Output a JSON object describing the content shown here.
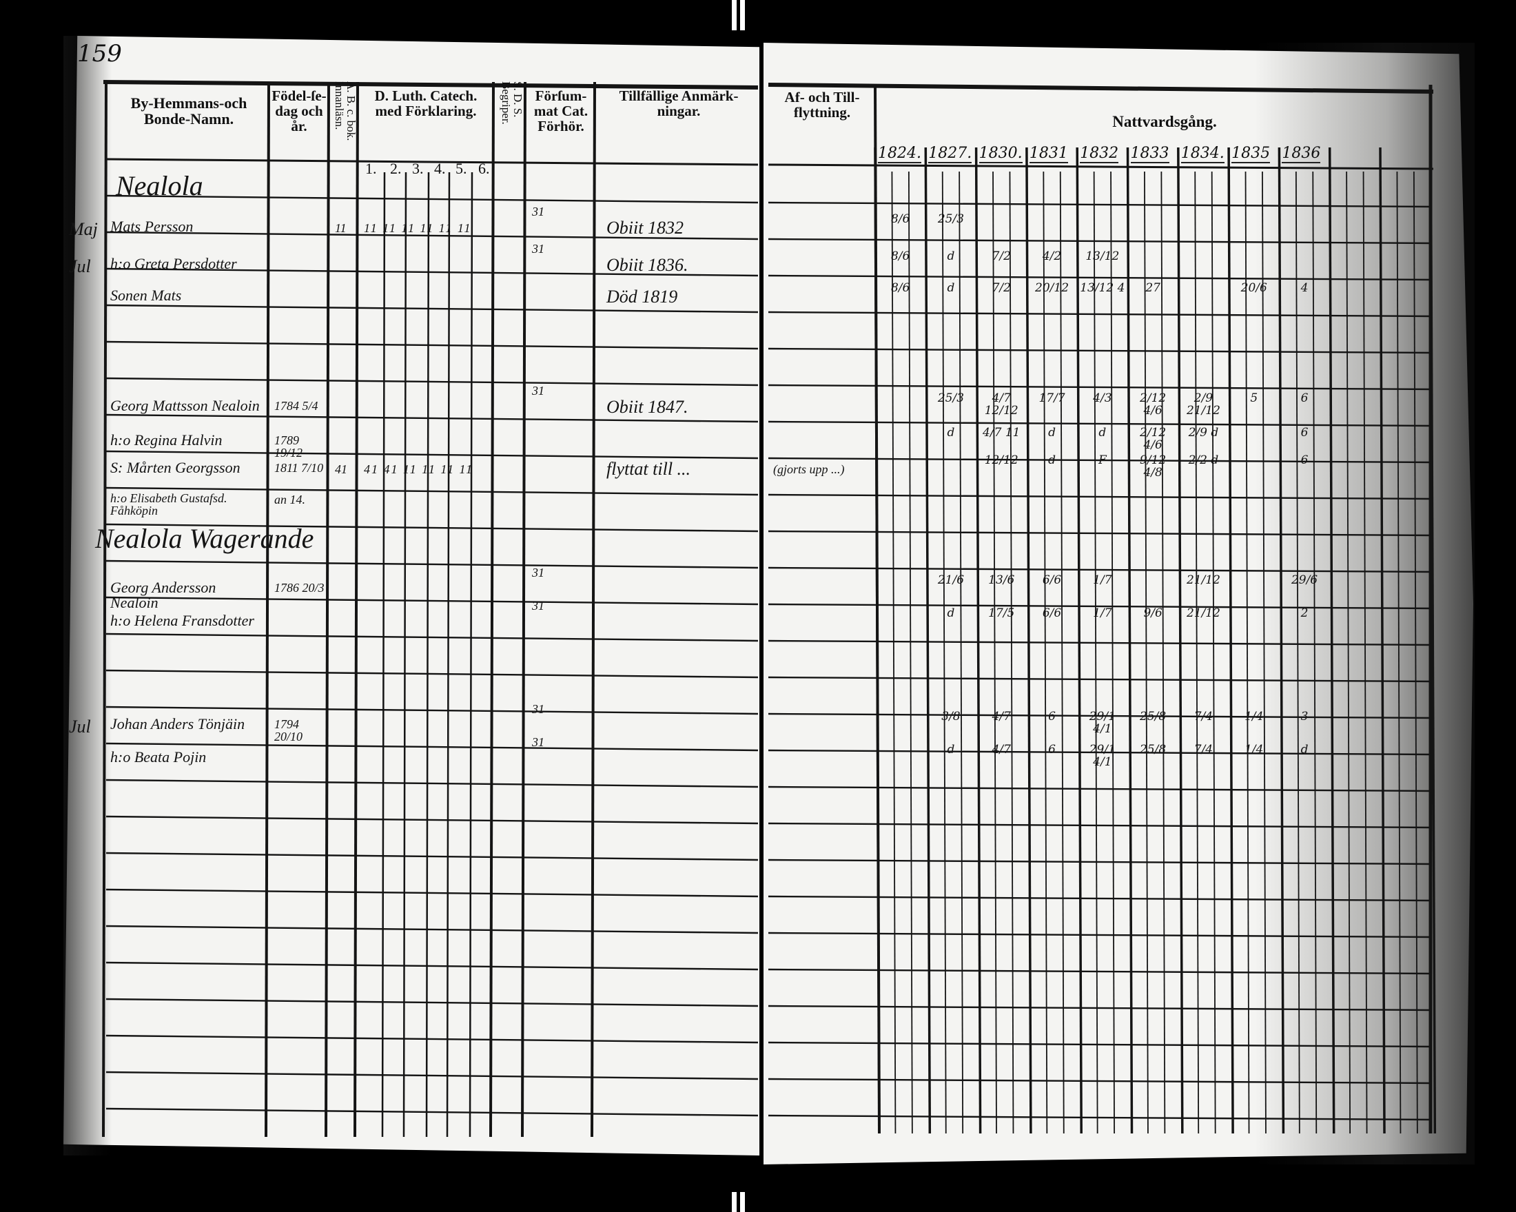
{
  "page_number": "159",
  "left_page": {
    "headers": {
      "name": "By-Hemmans-och Bonde-Namn.",
      "birth": "Födel-ſe-dag och år.",
      "abc": "A. B. c. bok. Innanläsn.",
      "catechism": "D. Luth. Catech. med Förklaring.",
      "understands": "S. D. S. Begriper.",
      "hearing": "Förſum-mat Cat. Förhör.",
      "remarks": "Tillfällige Anmärk-ningar."
    },
    "catechism_subcolumns": [
      "1.",
      "2.",
      "3.",
      "4.",
      "5.",
      "6."
    ]
  },
  "right_page": {
    "headers": {
      "moving": "Af- och Till-flyttning.",
      "communion": "Nattvardsgång."
    },
    "years": [
      "1824.",
      "1827.",
      "1830.",
      "1831",
      "1832",
      "1833",
      "1834.",
      "1835",
      "1836"
    ]
  },
  "farm_titles": [
    "Nealola",
    "Nealola Wagerande"
  ],
  "rows": [
    {
      "margin": "Maj",
      "name": "Mats Persson",
      "birth": "",
      "abc": "11",
      "catechism": "11 11 11 11 11 11",
      "hearing": "31",
      "remark": "Obiit 1832",
      "moving": "",
      "communion": [
        "8/6",
        "25/3",
        "",
        "",
        "",
        "",
        "",
        "",
        ""
      ]
    },
    {
      "margin": "Jul",
      "name": "h:o Greta Persdotter",
      "birth": "",
      "abc": "",
      "catechism": "",
      "hearing": "31",
      "remark": "Obiit 1836.",
      "moving": "",
      "communion": [
        "8/6",
        "d",
        "7/2",
        "4/2",
        "13/12",
        "",
        "",
        "",
        ""
      ]
    },
    {
      "margin": "",
      "name": "Sonen Mats",
      "birth": "",
      "abc": "",
      "catechism": "",
      "hearing": "",
      "remark": "Död 1819",
      "moving": "",
      "communion": [
        "8/6",
        "d",
        "7/2",
        "20/12",
        "13/12 4",
        "27",
        "",
        "20/6",
        "4"
      ]
    },
    {
      "margin": "",
      "name": "Georg Mattsson Nealoin",
      "birth": "1784 5/4",
      "abc": "",
      "catechism": "",
      "hearing": "31",
      "remark": "Obiit 1847.",
      "moving": "",
      "communion": [
        "",
        "25/3",
        "4/7 12/12",
        "17/7",
        "4/3",
        "2/12 4/6",
        "2/9 21/12",
        "5",
        "6"
      ]
    },
    {
      "margin": "",
      "name": "h:o Regina Halvin",
      "birth": "1789 19/12",
      "abc": "",
      "catechism": "",
      "hearing": "",
      "remark": "",
      "moving": "",
      "communion": [
        "",
        "d",
        "4/7 11",
        "d",
        "d",
        "2/12 4/6",
        "2/9 d",
        "",
        "6"
      ]
    },
    {
      "margin": "",
      "name": "S: Mårten Georgsson",
      "birth": "1811 7/10",
      "abc": "41",
      "catechism": "41 41 11 11 11 11",
      "hearing": "",
      "remark": "flyttat till ...",
      "moving": "(gjorts upp ...)",
      "communion": [
        "",
        "",
        "12/12",
        "d",
        "F",
        "9/12 4/8",
        "2/2 d",
        "",
        "6"
      ]
    },
    {
      "margin": "",
      "name": "h:o Elisabeth Gustafsd. Fåhköpin",
      "birth": "an 14.",
      "abc": "",
      "catechism": "",
      "hearing": "",
      "remark": "",
      "moving": "",
      "communion": [
        "",
        "",
        "",
        "",
        "",
        "",
        "",
        "",
        ""
      ]
    },
    {
      "margin": "",
      "name": "Georg Andersson Nealoin",
      "birth": "1786 20/3",
      "abc": "",
      "catechism": "",
      "hearing": "31",
      "remark": "",
      "moving": "",
      "communion": [
        "",
        "21/6",
        "13/6",
        "6/6",
        "1/7",
        "",
        "21/12",
        "",
        "29/6"
      ]
    },
    {
      "margin": "",
      "name": "h:o Helena Fransdotter",
      "birth": "",
      "abc": "",
      "catechism": "",
      "hearing": "31",
      "remark": "",
      "moving": "",
      "communion": [
        "",
        "d",
        "17/5",
        "6/6",
        "1/7",
        "9/6",
        "21/12",
        "",
        "2"
      ]
    },
    {
      "margin": "Jul",
      "name": "Johan Anders Tönjäin",
      "birth": "1794 20/10",
      "abc": "",
      "catechism": "",
      "hearing": "31",
      "remark": "",
      "moving": "",
      "communion": [
        "",
        "3/8",
        "4/7",
        "6",
        "29/1 4/1",
        "25/8",
        "7/4",
        "1/4",
        "3"
      ]
    },
    {
      "margin": "",
      "name": "h:o Beata Pojin",
      "birth": "",
      "abc": "",
      "catechism": "",
      "hearing": "31",
      "remark": "",
      "moving": "",
      "communion": [
        "",
        "d",
        "4/7",
        "6",
        "29/1 4/1",
        "25/8",
        "7/4",
        "1/4",
        "d"
      ]
    }
  ]
}
